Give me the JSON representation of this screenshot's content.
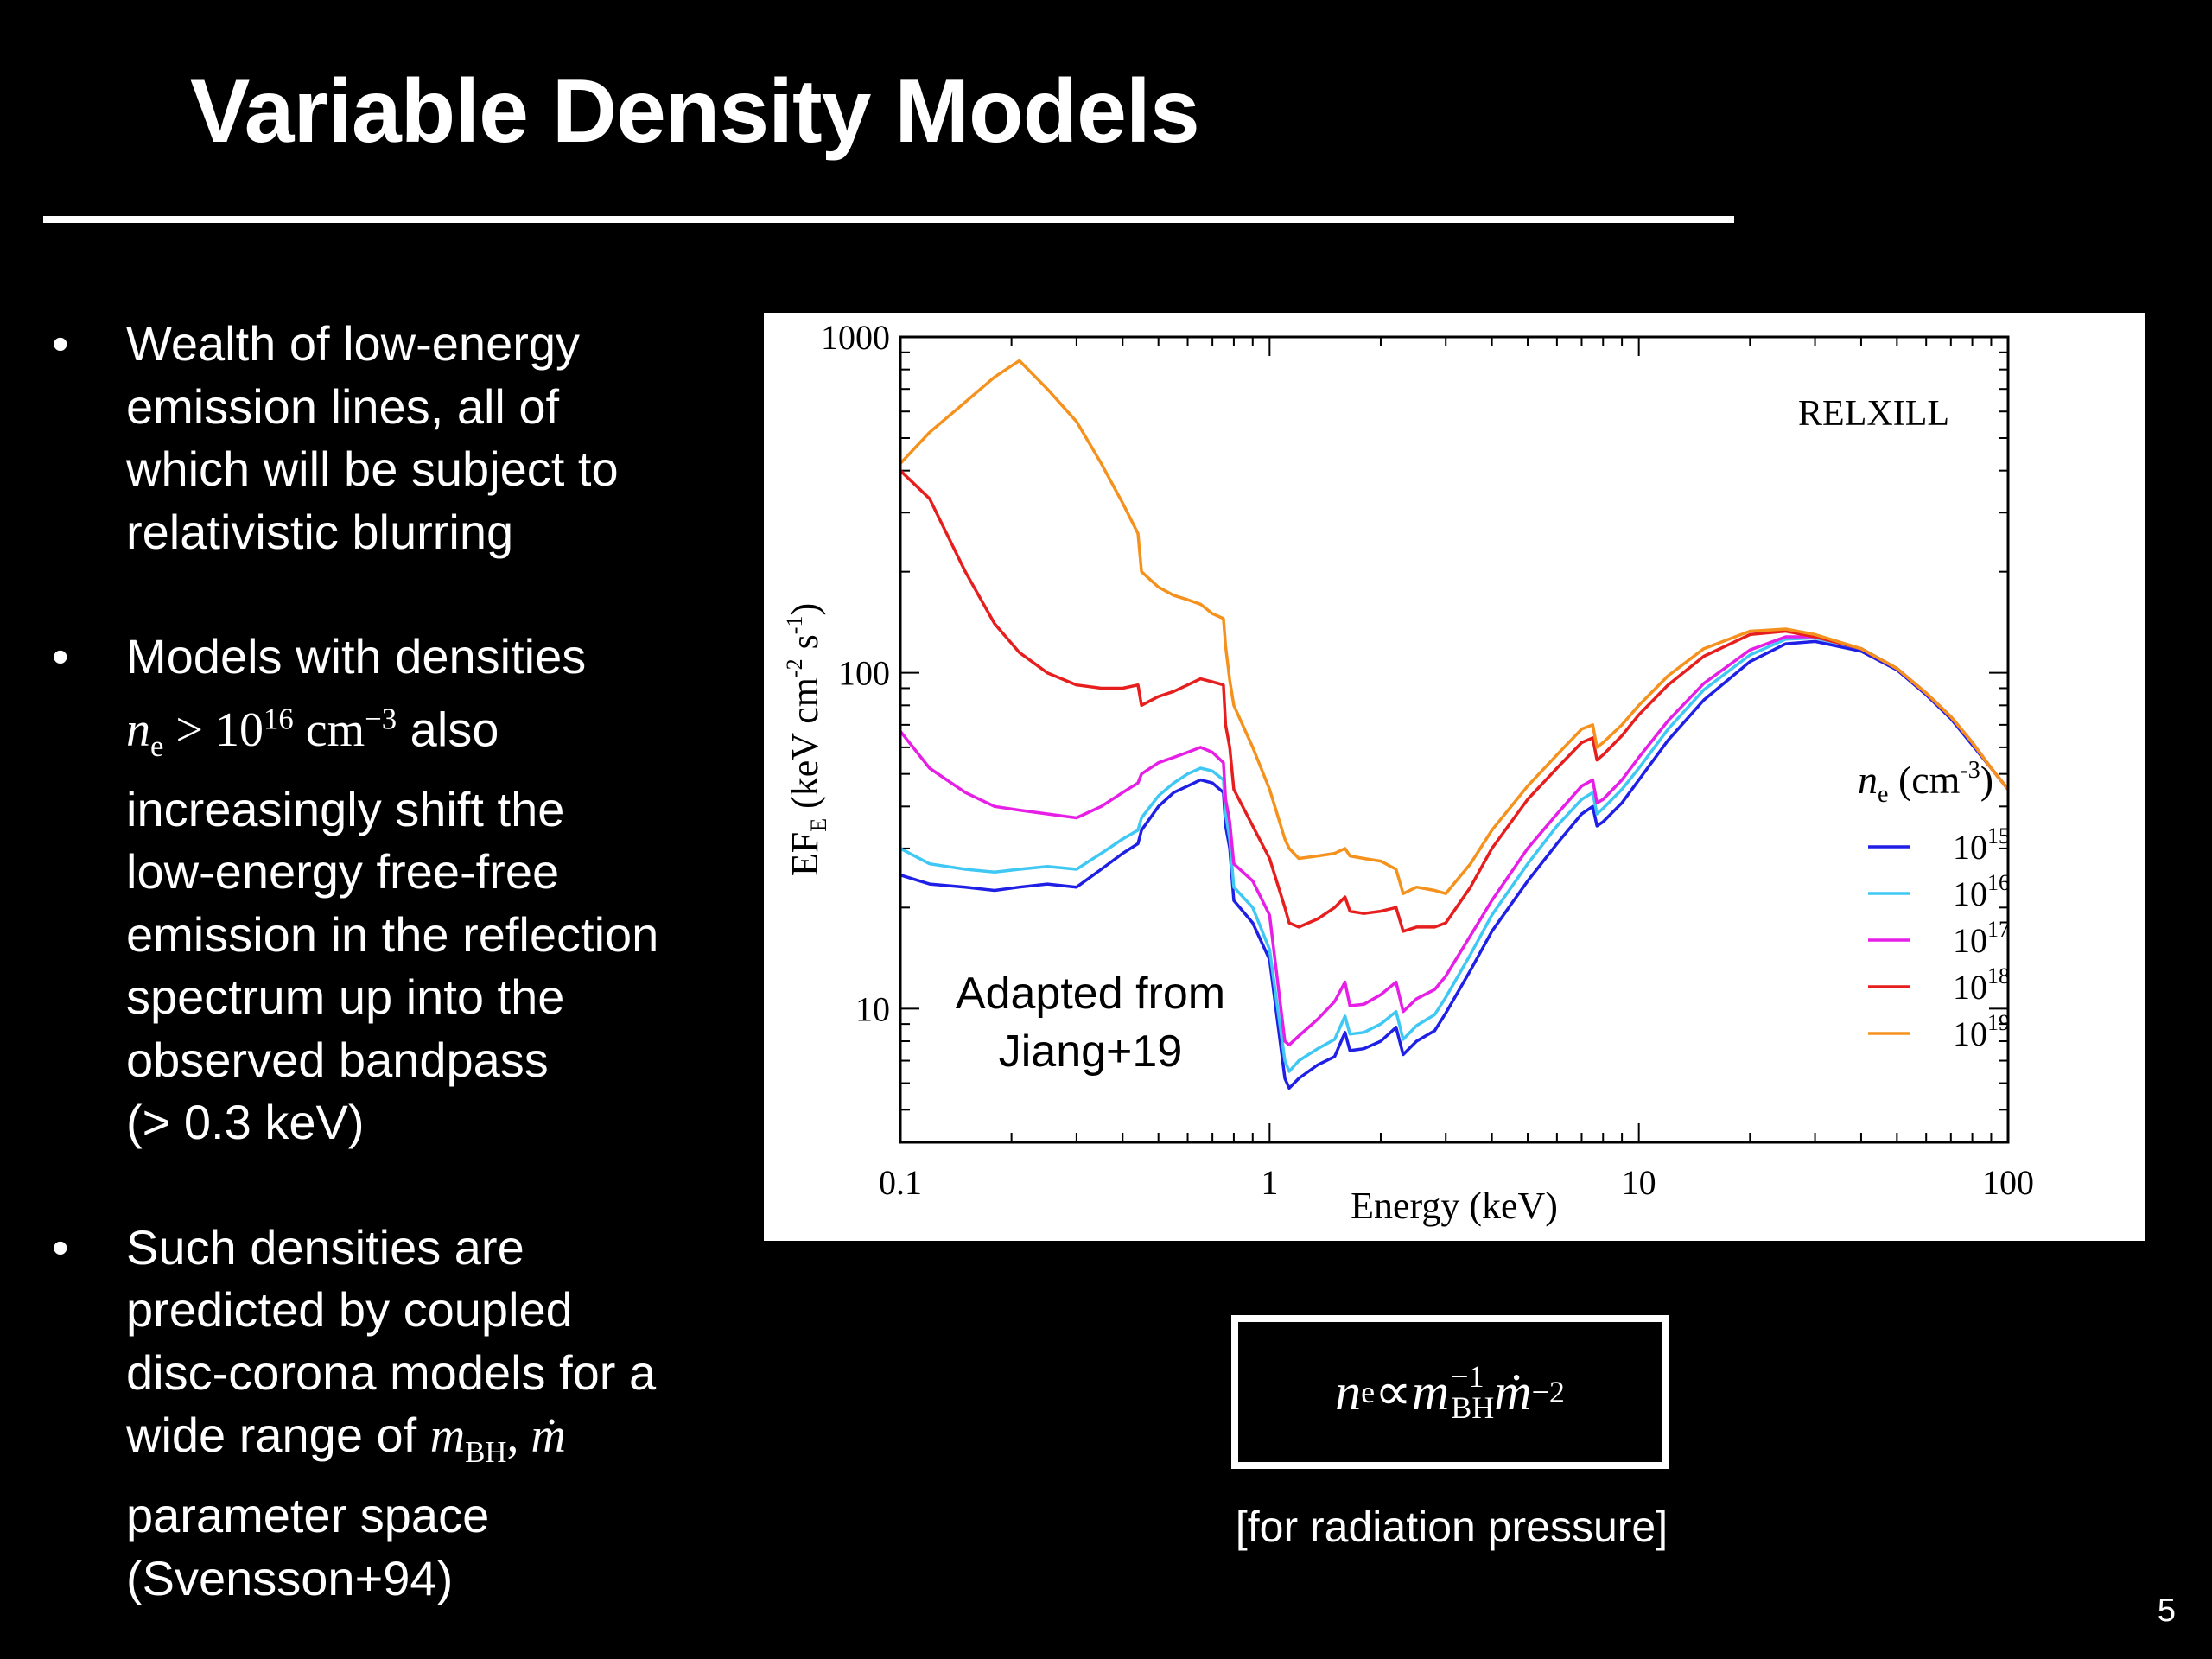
{
  "slide": {
    "title": "Variable Density Models",
    "page_number": "5"
  },
  "bullets": [
    {
      "lines": [
        "Wealth of low-energy",
        "emission lines, all of",
        "which will be subject to",
        "relativistic blurring"
      ]
    },
    {
      "line1": "Models with densities",
      "math": {
        "n": "n",
        "sub": "e",
        "op": " > ",
        "base": "10",
        "exp": "16",
        "unit": " cm",
        "unit_exp": "−3"
      },
      "math_tail": " also",
      "lines": [
        "increasingly shift the",
        "low-energy free-free",
        "emission in the reflection",
        "spectrum up into the",
        "observed bandpass",
        "(> 0.3 keV)"
      ]
    },
    {
      "lines_a": [
        "Such densities are",
        "predicted by coupled",
        "disc-corona models for a"
      ],
      "line_pre": "wide range of ",
      "math": {
        "m": "m",
        "sub": "BH",
        "sep": ", ",
        "mdot": "ṁ"
      },
      "lines_b": [
        "parameter space",
        "(Svensson+94)"
      ]
    }
  ],
  "bullet_symbol": "•",
  "formula": {
    "n": "n",
    "n_sub": "e",
    "prop": " ∝ ",
    "m": "m",
    "m_sup": "−1",
    "m_sub": "BH",
    "mdot": "ṁ",
    "mdot_sup": "−2",
    "note": "[for radiation pressure]"
  },
  "chart_data": {
    "type": "line",
    "title": "",
    "xlabel": "Energy (keV)",
    "ylabel": "EF",
    "ylabel_sub": "E",
    "ylabel_units_pre": " (keV cm",
    "ylabel_units_exp1": "-2",
    "ylabel_units_mid": " s",
    "ylabel_units_exp2": "-1",
    "ylabel_units_post": ")",
    "x_scale": "log",
    "y_scale": "log",
    "xlim": [
      0.1,
      100
    ],
    "ylim": [
      4,
      1000
    ],
    "xticks": [
      {
        "v": 0.1,
        "label": "0.1"
      },
      {
        "v": 1,
        "label": "1"
      },
      {
        "v": 10,
        "label": "10"
      },
      {
        "v": 100,
        "label": "100"
      }
    ],
    "yticks": [
      {
        "v": 10,
        "label": "10"
      },
      {
        "v": 100,
        "label": "100"
      },
      {
        "v": 1000,
        "label": "1000"
      }
    ],
    "annotation_model": "RELXILL",
    "annotation_source_line1": "Adapted from",
    "annotation_source_line2": "Jiang+19",
    "legend_title_n": "n",
    "legend_title_sub": "e",
    "legend_title_units_pre": " (cm",
    "legend_title_units_exp": "-3",
    "legend_title_units_post": ")",
    "legend_placement": "right",
    "x": [
      0.1,
      0.12,
      0.15,
      0.18,
      0.21,
      0.25,
      0.3,
      0.35,
      0.4,
      0.44,
      0.45,
      0.5,
      0.55,
      0.6,
      0.65,
      0.7,
      0.75,
      0.76,
      0.78,
      0.8,
      0.9,
      1.0,
      1.1,
      1.13,
      1.2,
      1.35,
      1.5,
      1.6,
      1.65,
      1.8,
      2.0,
      2.2,
      2.3,
      2.5,
      2.8,
      3.0,
      3.5,
      4.0,
      5.0,
      6.0,
      7.0,
      7.5,
      7.7,
      8.0,
      9.0,
      10,
      12,
      15,
      20,
      25,
      30,
      40,
      50,
      60,
      70,
      80,
      90,
      100
    ],
    "series": [
      {
        "name": "10¹⁵",
        "label_base": "10",
        "label_exp": "15",
        "color": "#1f1fe6",
        "values": [
          25,
          23.5,
          23,
          22.5,
          23,
          23.5,
          23,
          26,
          29,
          31,
          34,
          40,
          44,
          46,
          48,
          47,
          44,
          35,
          30,
          21,
          18,
          14,
          6.2,
          5.8,
          6.2,
          6.8,
          7.2,
          8.5,
          7.5,
          7.6,
          8.0,
          8.8,
          7.3,
          8.0,
          8.6,
          9.7,
          13,
          17,
          24,
          31,
          38,
          40,
          35,
          36,
          41,
          48,
          63,
          83,
          108,
          122,
          124,
          116,
          102,
          86,
          73,
          61,
          52,
          45
        ]
      },
      {
        "name": "10¹⁶",
        "label_base": "10",
        "label_exp": "16",
        "color": "#40c8f4",
        "values": [
          30,
          27,
          26,
          25.5,
          26,
          26.5,
          26,
          29,
          32,
          34,
          37,
          43,
          47,
          50,
          52,
          51,
          48,
          38,
          32,
          23,
          20,
          15,
          7.0,
          6.5,
          7.0,
          7.6,
          8.1,
          9.5,
          8.4,
          8.5,
          9.0,
          9.8,
          8.1,
          8.9,
          9.6,
          10.8,
          14.5,
          19,
          27,
          35,
          42,
          44,
          38,
          39.5,
          45,
          52,
          68,
          89,
          113,
          126,
          127,
          118,
          103,
          87,
          74,
          62,
          52,
          45
        ]
      },
      {
        "name": "10¹⁷",
        "label_base": "10",
        "label_exp": "17",
        "color": "#e61ee6",
        "values": [
          67,
          52,
          44,
          40,
          39,
          38,
          37,
          40,
          44,
          47,
          50,
          54,
          56,
          58,
          60,
          58,
          54,
          42,
          36,
          27,
          24,
          19,
          8.0,
          7.8,
          8.3,
          9.3,
          10.5,
          12,
          10.2,
          10.3,
          11.0,
          12.0,
          9.8,
          10.7,
          11.4,
          12.5,
          16.5,
          21,
          30,
          38,
          46,
          48,
          41,
          42,
          48,
          56,
          72,
          93,
          117,
          128,
          128,
          118,
          103,
          87,
          74,
          62,
          52,
          45
        ]
      },
      {
        "name": "10¹⁸",
        "label_base": "10",
        "label_exp": "18",
        "color": "#e61e1e",
        "values": [
          400,
          330,
          200,
          140,
          115,
          100,
          92,
          90,
          90,
          92,
          80,
          85,
          88,
          92,
          96,
          94,
          92,
          70,
          60,
          45,
          35,
          28,
          20,
          18,
          17.5,
          18.5,
          20,
          21.5,
          19.5,
          19.2,
          19.5,
          20,
          17,
          17.5,
          17.5,
          18,
          23,
          30,
          42,
          52,
          62,
          64,
          55,
          57,
          65,
          75,
          92,
          112,
          130,
          133,
          128,
          118,
          103,
          87,
          74,
          62,
          52,
          45
        ]
      },
      {
        "name": "10¹⁹",
        "label_base": "10",
        "label_exp": "19",
        "color": "#f5921e",
        "values": [
          420,
          520,
          640,
          760,
          850,
          700,
          560,
          420,
          320,
          260,
          200,
          180,
          170,
          165,
          160,
          150,
          145,
          120,
          95,
          80,
          60,
          45,
          32,
          30,
          28,
          28.5,
          29,
          30,
          28.5,
          28,
          27.5,
          26,
          22,
          23,
          22.5,
          22,
          27,
          34,
          46,
          57,
          68,
          70,
          60,
          62,
          70,
          80,
          98,
          118,
          133,
          135,
          130,
          118,
          103,
          87,
          74,
          62,
          52,
          45
        ]
      }
    ]
  }
}
